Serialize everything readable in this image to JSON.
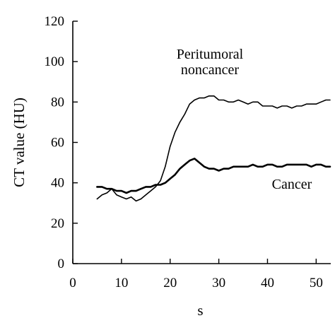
{
  "chart_data": {
    "type": "line",
    "title": "",
    "xlabel": "s",
    "ylabel": "CT value (HU)",
    "xlim": [
      0,
      53
    ],
    "ylim": [
      0,
      120
    ],
    "xticks": [
      0,
      10,
      20,
      30,
      40,
      50
    ],
    "yticks": [
      0,
      20,
      40,
      60,
      80,
      100,
      120
    ],
    "grid": false,
    "annotations": [
      {
        "text_lines": [
          "Peritumoral",
          "noncancer"
        ],
        "series": "peritumoral"
      },
      {
        "text_lines": [
          "Cancer"
        ],
        "series": "cancer"
      }
    ],
    "series": [
      {
        "id": "peritumoral",
        "stroke_width": 1.6,
        "x": [
          5,
          6,
          7,
          8,
          9,
          10,
          11,
          12,
          13,
          14,
          15,
          16,
          17,
          18,
          19,
          20,
          21,
          22,
          23,
          24,
          25,
          26,
          27,
          28,
          29,
          30,
          31,
          32,
          33,
          34,
          35,
          36,
          37,
          38,
          39,
          40,
          41,
          42,
          43,
          44,
          45,
          46,
          47,
          48,
          49,
          50,
          51,
          52,
          53
        ],
        "y": [
          32,
          34,
          35,
          37,
          34,
          33,
          32,
          33,
          31,
          32,
          34,
          36,
          38,
          41,
          48,
          58,
          65,
          70,
          74,
          79,
          81,
          82,
          82,
          83,
          83,
          81,
          81,
          80,
          80,
          81,
          80,
          79,
          80,
          80,
          78,
          78,
          78,
          77,
          78,
          78,
          77,
          78,
          78,
          79,
          79,
          79,
          80,
          81,
          81
        ]
      },
      {
        "id": "cancer",
        "stroke_width": 2.6,
        "x": [
          5,
          6,
          7,
          8,
          9,
          10,
          11,
          12,
          13,
          14,
          15,
          16,
          17,
          18,
          19,
          20,
          21,
          22,
          23,
          24,
          25,
          26,
          27,
          28,
          29,
          30,
          31,
          32,
          33,
          34,
          35,
          36,
          37,
          38,
          39,
          40,
          41,
          42,
          43,
          44,
          45,
          46,
          47,
          48,
          49,
          50,
          51,
          52,
          53
        ],
        "y": [
          38,
          38,
          37,
          37,
          36,
          36,
          35,
          36,
          36,
          37,
          38,
          38,
          39,
          39,
          40,
          42,
          44,
          47,
          49,
          51,
          52,
          50,
          48,
          47,
          47,
          46,
          47,
          47,
          48,
          48,
          48,
          48,
          49,
          48,
          48,
          49,
          49,
          48,
          48,
          49,
          49,
          49,
          49,
          49,
          48,
          49,
          49,
          48,
          48
        ]
      }
    ]
  }
}
